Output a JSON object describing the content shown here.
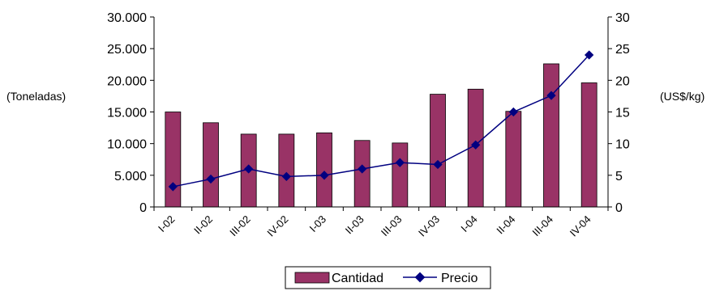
{
  "chart_data": {
    "type": "bar",
    "categories": [
      "I-02",
      "II-02",
      "III-02",
      "IV-02",
      "I-03",
      "II-03",
      "III-03",
      "IV-03",
      "I-04",
      "II-04",
      "III-04",
      "IV-04"
    ],
    "series": [
      {
        "name": "Cantidad",
        "type": "bar",
        "axis": "left",
        "color": "#993366",
        "values": [
          15000,
          13300,
          11500,
          11500,
          11700,
          10500,
          10100,
          17800,
          18600,
          15100,
          22600,
          19600
        ]
      },
      {
        "name": "Precio",
        "type": "line",
        "axis": "right",
        "color": "#000080",
        "values": [
          3.2,
          4.4,
          6.0,
          4.8,
          5.0,
          6.0,
          7.0,
          6.7,
          9.8,
          15.0,
          17.6,
          24.0
        ]
      }
    ],
    "ylabel_left": "(Toneladas)",
    "ylabel_right": "(US$/kg)",
    "ylim_left": [
      0,
      30000
    ],
    "ylim_right": [
      0,
      30
    ],
    "yticks_left": [
      "0",
      "5.000",
      "10.000",
      "15.000",
      "20.000",
      "25.000",
      "30.000"
    ],
    "yticks_right": [
      "0",
      "5",
      "10",
      "15",
      "20",
      "25",
      "30"
    ],
    "grid": false,
    "legend_position": "bottom"
  }
}
